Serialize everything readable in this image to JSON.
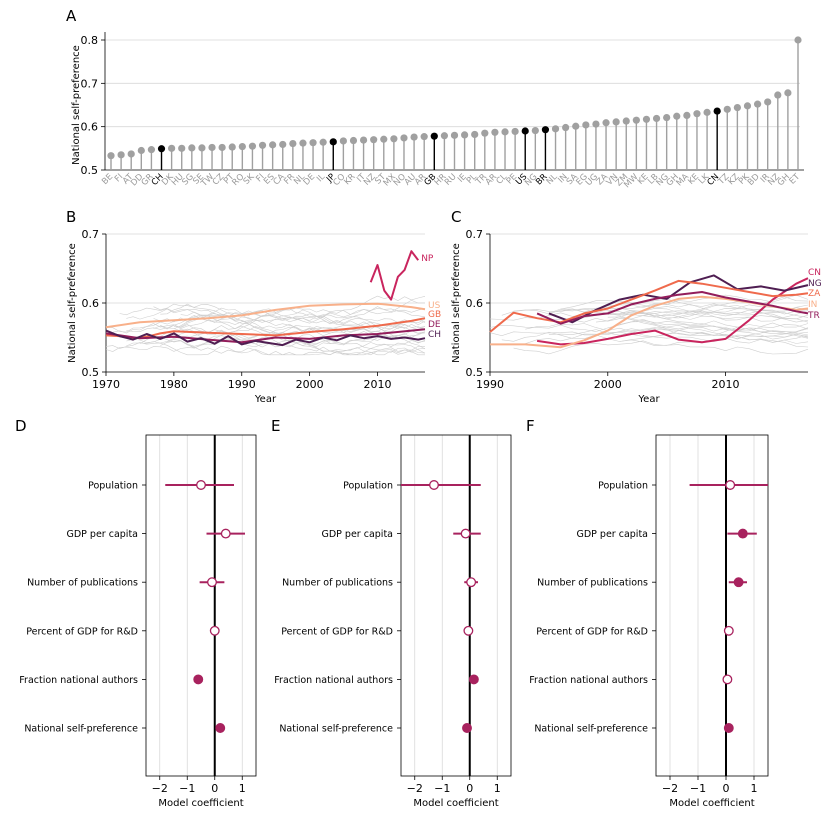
{
  "chart_data": [
    {
      "panel": "A",
      "type": "lollipop",
      "ylabel": "National self-preference",
      "ylim": [
        0.5,
        0.8
      ],
      "yticks": [
        0.5,
        0.6,
        0.7,
        0.8
      ],
      "highlighted": [
        "CH",
        "JP",
        "GB",
        "US",
        "BR",
        "CN"
      ],
      "highlight_color": "#000000",
      "base_color": "#a0a0a0",
      "categories": [
        "BE",
        "FI",
        "AT",
        "DD",
        "GR",
        "CH",
        "DK",
        "HU",
        "SG",
        "SE",
        "TW",
        "CZ",
        "PT",
        "RO",
        "SK",
        "FI",
        "ES",
        "CA",
        "FR",
        "NL",
        "DE",
        "IL",
        "JP",
        "CO",
        "KR",
        "IT",
        "NZ",
        "ST",
        "MX",
        "NO",
        "AU",
        "AR",
        "GB",
        "HR",
        "RU",
        "IE",
        "PL",
        "TR",
        "AR",
        "CL",
        "PE",
        "US",
        "NG",
        "BR",
        "NL",
        "IN",
        "SA",
        "EG",
        "UG",
        "ZA",
        "VN",
        "ZM",
        "MW",
        "KE",
        "LB",
        "NG",
        "GH",
        "MA",
        "KE",
        "LK",
        "CN",
        "TZ",
        "KZ",
        "PK",
        "BD",
        "IR",
        "NZ",
        "GH",
        "ET"
      ],
      "values": [
        0.533,
        0.535,
        0.537,
        0.545,
        0.547,
        0.549,
        0.55,
        0.55,
        0.551,
        0.551,
        0.552,
        0.552,
        0.553,
        0.554,
        0.555,
        0.557,
        0.558,
        0.559,
        0.561,
        0.562,
        0.563,
        0.564,
        0.565,
        0.567,
        0.568,
        0.569,
        0.57,
        0.571,
        0.572,
        0.574,
        0.576,
        0.577,
        0.578,
        0.579,
        0.58,
        0.581,
        0.582,
        0.585,
        0.587,
        0.588,
        0.589,
        0.59,
        0.591,
        0.593,
        0.595,
        0.598,
        0.601,
        0.604,
        0.606,
        0.609,
        0.611,
        0.613,
        0.615,
        0.617,
        0.619,
        0.621,
        0.624,
        0.626,
        0.63,
        0.633,
        0.636,
        0.64,
        0.644,
        0.648,
        0.652,
        0.657,
        0.673,
        0.678,
        0.8
      ]
    },
    {
      "panel": "B",
      "type": "line",
      "xlabel": "Year",
      "ylabel": "National self-preference",
      "xlim": [
        1970,
        2017
      ],
      "ylim": [
        0.5,
        0.7
      ],
      "xticks": [
        1970,
        1980,
        1990,
        2000,
        2010
      ],
      "yticks": [
        0.5,
        0.6,
        0.7
      ],
      "series": [
        {
          "name": "NP",
          "color": "#c9255e",
          "x": [
            2009,
            2010,
            2011,
            2012,
            2013,
            2014,
            2015,
            2016
          ],
          "values": [
            0.63,
            0.655,
            0.618,
            0.605,
            0.638,
            0.648,
            0.675,
            0.662
          ]
        },
        {
          "name": "US",
          "color": "#f8b08a",
          "x": [
            1970,
            1975,
            1980,
            1985,
            1990,
            1995,
            2000,
            2005,
            2010,
            2015,
            2017
          ],
          "values": [
            0.565,
            0.572,
            0.575,
            0.578,
            0.582,
            0.59,
            0.596,
            0.598,
            0.599,
            0.594,
            0.591
          ]
        },
        {
          "name": "GB",
          "color": "#ef6a4c",
          "x": [
            1970,
            1972,
            1974,
            1976,
            1978,
            1980,
            1985,
            1990,
            1995,
            2000,
            2005,
            2010,
            2015,
            2017
          ],
          "values": [
            0.553,
            0.552,
            0.549,
            0.551,
            0.556,
            0.559,
            0.557,
            0.555,
            0.553,
            0.558,
            0.562,
            0.567,
            0.574,
            0.578
          ]
        },
        {
          "name": "DE",
          "color": "#931d5b",
          "x": [
            1970,
            1975,
            1980,
            1985,
            1990,
            1995,
            2000,
            2005,
            2010,
            2015,
            2017
          ],
          "values": [
            0.556,
            0.549,
            0.551,
            0.547,
            0.543,
            0.55,
            0.548,
            0.553,
            0.555,
            0.56,
            0.562
          ]
        },
        {
          "name": "CH",
          "color": "#4f1e52",
          "x": [
            1970,
            1972,
            1974,
            1976,
            1978,
            1980,
            1982,
            1984,
            1986,
            1988,
            1990,
            1992,
            1994,
            1996,
            1998,
            2000,
            2002,
            2004,
            2006,
            2008,
            2010,
            2012,
            2014,
            2016,
            2017
          ],
          "values": [
            0.56,
            0.552,
            0.547,
            0.555,
            0.548,
            0.556,
            0.544,
            0.549,
            0.541,
            0.552,
            0.54,
            0.545,
            0.542,
            0.539,
            0.547,
            0.543,
            0.55,
            0.546,
            0.553,
            0.549,
            0.552,
            0.548,
            0.55,
            0.547,
            0.549
          ]
        }
      ]
    },
    {
      "panel": "C",
      "type": "line",
      "xlabel": "Year",
      "ylabel": "National self-preference",
      "xlim": [
        1990,
        2017
      ],
      "ylim": [
        0.5,
        0.7
      ],
      "xticks": [
        1990,
        2000,
        2010
      ],
      "yticks": [
        0.5,
        0.6,
        0.7
      ],
      "series": [
        {
          "name": "CN",
          "color": "#c9255e",
          "x": [
            1994,
            1996,
            1998,
            2000,
            2002,
            2004,
            2006,
            2008,
            2010,
            2012,
            2014,
            2016,
            2017
          ],
          "values": [
            0.545,
            0.54,
            0.542,
            0.548,
            0.555,
            0.56,
            0.547,
            0.543,
            0.548,
            0.575,
            0.605,
            0.628,
            0.636
          ]
        },
        {
          "name": "NG",
          "color": "#4f1e52",
          "x": [
            1995,
            1997,
            1999,
            2001,
            2003,
            2005,
            2007,
            2009,
            2011,
            2013,
            2015,
            2017
          ],
          "values": [
            0.585,
            0.572,
            0.59,
            0.605,
            0.612,
            0.606,
            0.63,
            0.64,
            0.62,
            0.624,
            0.618,
            0.626
          ]
        },
        {
          "name": "ZA",
          "color": "#ef6a4c",
          "x": [
            1990,
            1992,
            1994,
            1996,
            1998,
            2000,
            2002,
            2004,
            2006,
            2008,
            2010,
            2012,
            2014,
            2016,
            2017
          ],
          "values": [
            0.558,
            0.586,
            0.578,
            0.572,
            0.585,
            0.592,
            0.605,
            0.618,
            0.632,
            0.628,
            0.622,
            0.616,
            0.61,
            0.612,
            0.614
          ]
        },
        {
          "name": "IN",
          "color": "#f8b08a",
          "x": [
            1990,
            1993,
            1996,
            1998,
            2000,
            2002,
            2004,
            2006,
            2008,
            2010,
            2012,
            2014,
            2016,
            2017
          ],
          "values": [
            0.54,
            0.54,
            0.536,
            0.546,
            0.56,
            0.582,
            0.596,
            0.606,
            0.609,
            0.606,
            0.601,
            0.595,
            0.59,
            0.592
          ]
        },
        {
          "name": "TR",
          "color": "#931d5b",
          "x": [
            1994,
            1996,
            1998,
            2000,
            2002,
            2004,
            2006,
            2008,
            2010,
            2012,
            2014,
            2016,
            2017
          ],
          "values": [
            0.585,
            0.57,
            0.581,
            0.585,
            0.598,
            0.606,
            0.612,
            0.616,
            0.608,
            0.602,
            0.596,
            0.588,
            0.585
          ]
        }
      ]
    },
    {
      "panel": "D",
      "type": "forest",
      "xlabel": "Model coefficient",
      "xlim": [
        -2.5,
        1.5
      ],
      "xticks": [
        -2,
        -1,
        0,
        1
      ],
      "xtick_labels": [
        "−2",
        "−1",
        "0",
        "1"
      ],
      "categories": [
        "Population",
        "GDP per capita",
        "Number of publications",
        "Percent of GDP for R&D",
        "Fraction national authors",
        "National self-preference"
      ],
      "estimates": [
        -0.5,
        0.4,
        -0.1,
        0.0,
        -0.6,
        0.2
      ],
      "ci_low": [
        -1.8,
        -0.3,
        -0.55,
        -0.1,
        -0.75,
        0.1
      ],
      "ci_high": [
        0.7,
        1.1,
        0.35,
        0.1,
        -0.45,
        0.3
      ],
      "significant": [
        false,
        false,
        false,
        false,
        true,
        true
      ]
    },
    {
      "panel": "E",
      "type": "forest",
      "xlabel": "Model coefficient",
      "xlim": [
        -2.5,
        1.5
      ],
      "xticks": [
        -2,
        -1,
        0,
        1
      ],
      "xtick_labels": [
        "−2",
        "−1",
        "0",
        "1"
      ],
      "categories": [
        "Population",
        "GDP per capita",
        "Number of publications",
        "Percent of GDP for R&D",
        "Fraction national authors",
        "National self-preference"
      ],
      "estimates": [
        -1.3,
        -0.15,
        0.05,
        -0.05,
        0.15,
        -0.1
      ],
      "ci_low": [
        -2.5,
        -0.6,
        -0.2,
        -0.15,
        0.05,
        -0.2
      ],
      "ci_high": [
        0.4,
        0.4,
        0.3,
        0.05,
        0.25,
        0.0
      ],
      "significant": [
        false,
        false,
        false,
        false,
        true,
        true
      ]
    },
    {
      "panel": "F",
      "type": "forest",
      "xlabel": "Model coefficient",
      "xlim": [
        -2.5,
        1.5
      ],
      "xticks": [
        -2,
        -1,
        0,
        1
      ],
      "xtick_labels": [
        "−2",
        "−1",
        "0",
        "1"
      ],
      "categories": [
        "Population",
        "GDP per capita",
        "Number of publications",
        "Percent of GDP for R&D",
        "Fraction national authors",
        "National self-preference"
      ],
      "estimates": [
        0.15,
        0.6,
        0.45,
        0.1,
        0.05,
        0.1
      ],
      "ci_low": [
        -1.3,
        0.05,
        0.1,
        0.0,
        -0.05,
        0.0
      ],
      "ci_high": [
        1.5,
        1.1,
        0.75,
        0.2,
        0.15,
        0.2
      ],
      "significant": [
        false,
        true,
        true,
        false,
        false,
        true
      ]
    }
  ],
  "colors": {
    "forest_marker": "#a8225e",
    "axis": "#000000",
    "grid": "#d9d9d9",
    "background_line": "#cfcfcf"
  }
}
